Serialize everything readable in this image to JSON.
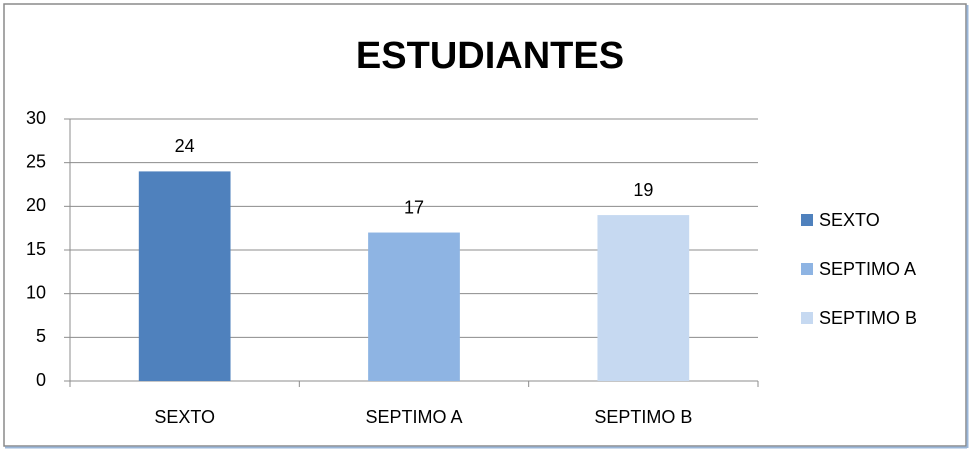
{
  "chart_data": {
    "type": "bar",
    "title": "ESTUDIANTES",
    "categories": [
      "SEXTO",
      "SEPTIMO A",
      "SEPTIMO B"
    ],
    "values": [
      24,
      17,
      19
    ],
    "colors": [
      "#4f81bd",
      "#8eb4e3",
      "#c6d9f1"
    ],
    "ylim": [
      0,
      30
    ],
    "yticks": [
      0,
      5,
      10,
      15,
      20,
      25,
      30
    ],
    "grid": true,
    "legend": "right"
  }
}
